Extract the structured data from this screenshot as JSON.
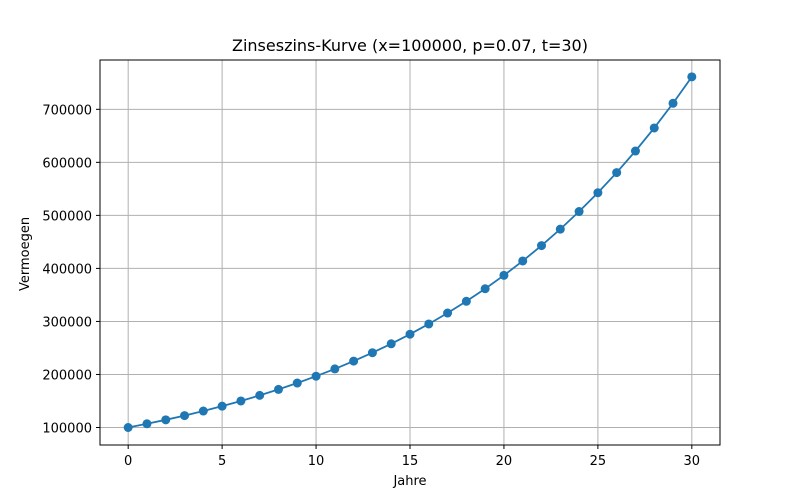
{
  "chart_data": {
    "type": "line",
    "title": "Zinseszins-Kurve (x=100000, p=0.07, t=30)",
    "xlabel": "Jahre",
    "ylabel": "Vermoegen",
    "xlim": [
      -1.5,
      31.5
    ],
    "ylim": [
      67000,
      793000
    ],
    "grid": true,
    "marker": "circle",
    "colors": {
      "series": "#1f77b4",
      "grid": "#b0b0b0",
      "axis": "#000000"
    },
    "x_ticks": [
      {
        "value": 0,
        "label": "0"
      },
      {
        "value": 5,
        "label": "5"
      },
      {
        "value": 10,
        "label": "10"
      },
      {
        "value": 15,
        "label": "15"
      },
      {
        "value": 20,
        "label": "20"
      },
      {
        "value": 25,
        "label": "25"
      },
      {
        "value": 30,
        "label": "30"
      }
    ],
    "y_ticks": [
      {
        "value": 100000,
        "label": "100000"
      },
      {
        "value": 200000,
        "label": "200000"
      },
      {
        "value": 300000,
        "label": "300000"
      },
      {
        "value": 400000,
        "label": "400000"
      },
      {
        "value": 500000,
        "label": "500000"
      },
      {
        "value": 600000,
        "label": "600000"
      },
      {
        "value": 700000,
        "label": "700000"
      }
    ],
    "series": [
      {
        "x": [
          0,
          1,
          2,
          3,
          4,
          5,
          6,
          7,
          8,
          9,
          10,
          11,
          12,
          13,
          14,
          15,
          16,
          17,
          18,
          19,
          20,
          21,
          22,
          23,
          24,
          25,
          26,
          27,
          28,
          29,
          30
        ],
        "values": [
          100000,
          107000,
          114490,
          122504,
          131080,
          140255,
          150073,
          160578,
          171819,
          183846,
          196715,
          210485,
          225219,
          240985,
          257853,
          275903,
          295216,
          315882,
          337993,
          361653,
          386968,
          414056,
          443040,
          474053,
          507237,
          542743,
          580735,
          621387,
          664884,
          711426,
          761226
        ]
      }
    ]
  }
}
